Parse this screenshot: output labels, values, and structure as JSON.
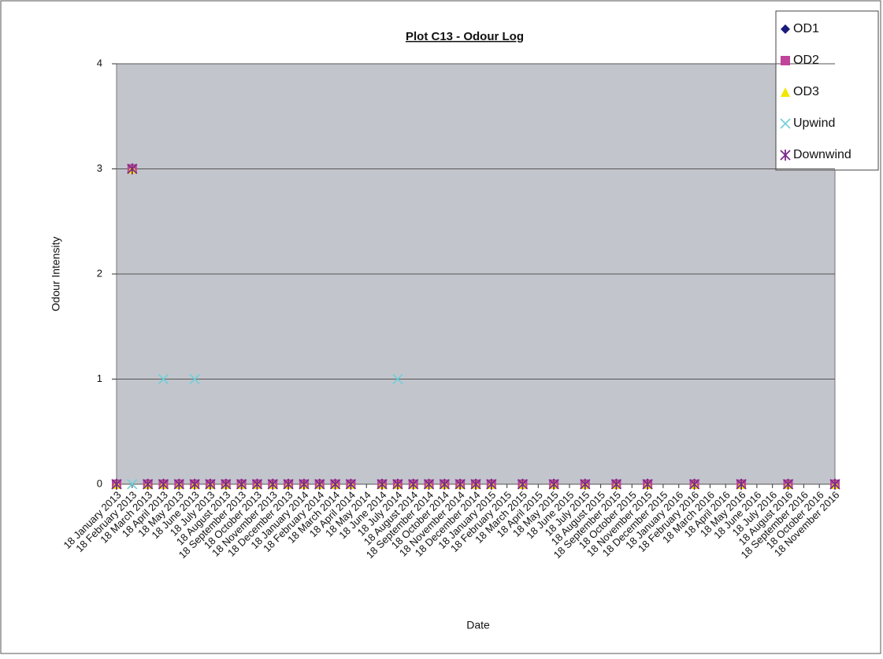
{
  "chart_data": {
    "type": "line",
    "markers_only": true,
    "title": "Plot  C13 - Odour Log",
    "x_label": "Date",
    "y_label": "Odour Intensity",
    "categories": [
      "18 January 2013",
      "18 February 2013",
      "18 March 2013",
      "18 April 2013",
      "18 May 2013",
      "18 June 2013",
      "18 July 2013",
      "18 August 2013",
      "18 September 2013",
      "18 October 2013",
      "18 November 2013",
      "18 December 2013",
      "18 January 2014",
      "18 February 2014",
      "18 March 2014",
      "18 April 2014",
      "18 May 2014",
      "18 June 2014",
      "18 July 2014",
      "18 August 2014",
      "18 September 2014",
      "18 October 2014",
      "18 November 2014",
      "18 December 2014",
      "18 January 2015",
      "18 February 2015",
      "18 March 2015",
      "18 April 2015",
      "18 May 2015",
      "18 June 2015",
      "18 July 2015",
      "18 August 2015",
      "18 September 2015",
      "18 October 2015",
      "18 November 2015",
      "18 December 2015",
      "18 January 2016",
      "18 February 2016",
      "18 March 2016",
      "18 April 2016",
      "18 May 2016",
      "18 June 2016",
      "18 July 2016",
      "18 August 2016",
      "18 September 2016",
      "18 October 2016",
      "18 November 2016"
    ],
    "series": [
      {
        "name": "OD1",
        "color": "#1a1a7a",
        "marker": "diamond",
        "values": [
          0,
          3,
          0,
          0,
          0,
          0,
          0,
          0,
          0,
          0,
          0,
          0,
          0,
          0,
          0,
          0,
          null,
          0,
          0,
          0,
          0,
          0,
          0,
          0,
          0,
          null,
          0,
          null,
          0,
          null,
          0,
          null,
          0,
          null,
          0,
          null,
          null,
          0,
          null,
          null,
          0,
          null,
          null,
          0,
          null,
          null,
          0
        ]
      },
      {
        "name": "OD2",
        "color": "#c0449a",
        "marker": "square",
        "values": [
          0,
          3,
          0,
          0,
          0,
          0,
          0,
          0,
          0,
          0,
          0,
          0,
          0,
          0,
          0,
          0,
          null,
          0,
          0,
          0,
          0,
          0,
          0,
          0,
          0,
          null,
          0,
          null,
          0,
          null,
          0,
          null,
          0,
          null,
          0,
          null,
          null,
          0,
          null,
          null,
          0,
          null,
          null,
          0,
          null,
          null,
          0
        ]
      },
      {
        "name": "OD3",
        "color": "#f2e600",
        "marker": "triangle",
        "values": [
          0,
          3,
          0,
          0,
          0,
          0,
          0,
          0,
          0,
          0,
          0,
          0,
          0,
          0,
          0,
          0,
          null,
          0,
          0,
          0,
          0,
          0,
          0,
          0,
          0,
          null,
          0,
          null,
          0,
          null,
          0,
          null,
          0,
          null,
          0,
          null,
          null,
          0,
          null,
          null,
          0,
          null,
          null,
          0,
          null,
          null,
          0
        ]
      },
      {
        "name": "Upwind",
        "color": "#6fd0d8",
        "marker": "x",
        "values": [
          0,
          0,
          0,
          1,
          0,
          1,
          0,
          0,
          0,
          0,
          0,
          0,
          0,
          0,
          0,
          0,
          null,
          0,
          1,
          0,
          0,
          0,
          0,
          0,
          0,
          null,
          0,
          null,
          0,
          null,
          0,
          null,
          0,
          null,
          0,
          null,
          null,
          0,
          null,
          null,
          0,
          null,
          null,
          0,
          null,
          null,
          0
        ]
      },
      {
        "name": "Downwind",
        "color": "#7a2a8a",
        "marker": "star",
        "values": [
          0,
          3,
          0,
          0,
          0,
          0,
          0,
          0,
          0,
          0,
          0,
          0,
          0,
          0,
          0,
          0,
          null,
          0,
          0,
          0,
          0,
          0,
          0,
          0,
          0,
          null,
          0,
          null,
          0,
          null,
          0,
          null,
          0,
          null,
          0,
          null,
          null,
          0,
          null,
          null,
          0,
          null,
          null,
          0,
          null,
          null,
          0
        ]
      }
    ],
    "ylim": [
      0,
      4
    ],
    "yticks": [
      0,
      1,
      2,
      3,
      4
    ],
    "grid": true
  }
}
